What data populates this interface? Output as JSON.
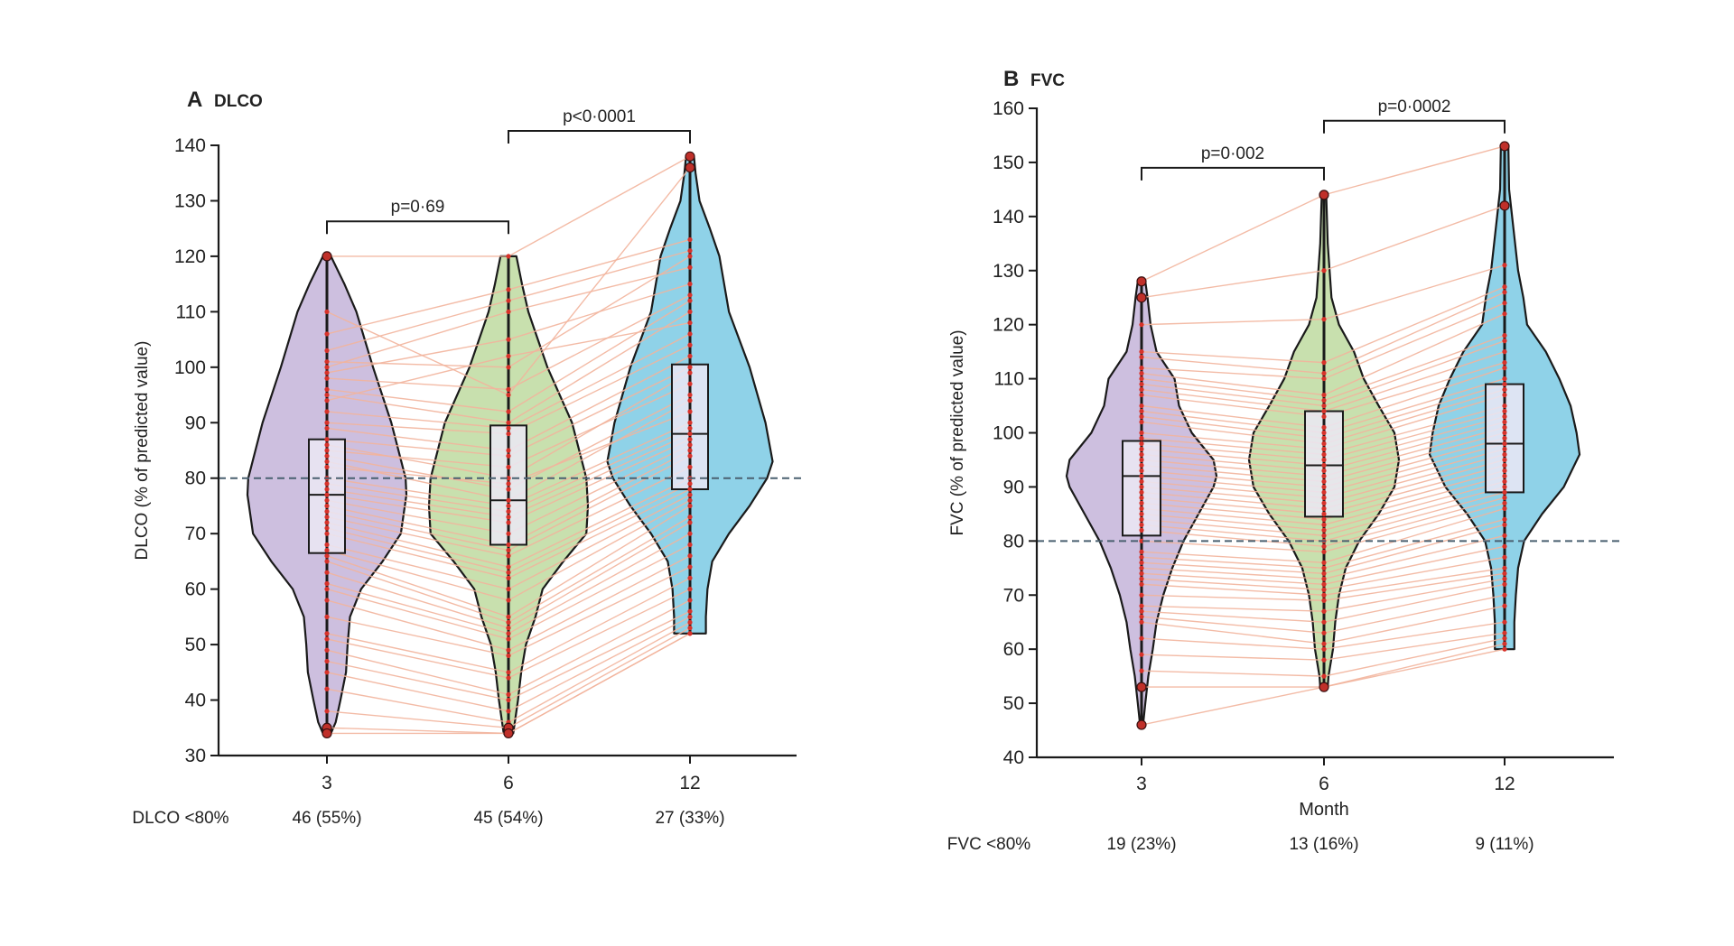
{
  "chart_data": [
    {
      "type": "violin",
      "panel_letter": "A",
      "title": "DLCO",
      "xlabel": "",
      "ylabel": "DLCO (% of predicted value)",
      "ylim": [
        30,
        140
      ],
      "yticks": [
        30,
        40,
        50,
        60,
        70,
        80,
        90,
        100,
        110,
        120,
        130,
        140
      ],
      "categories": [
        "3",
        "6",
        "12"
      ],
      "colors": [
        "#cdbfdf",
        "#c8e0ae",
        "#8fd2e8"
      ],
      "reference_line": 80,
      "comparisons": [
        {
          "from": 0,
          "to": 1,
          "label": "p=0·69"
        },
        {
          "from": 1,
          "to": 2,
          "label": "p<0·0001"
        }
      ],
      "below_threshold": {
        "label": "DLCO <80%",
        "values": [
          "46 (55%)",
          "45 (54%)",
          "27 (33%)"
        ]
      },
      "boxes": [
        {
          "min": 34,
          "q1": 66.5,
          "median": 77,
          "q3": 87,
          "max": 120
        },
        {
          "min": 34,
          "q1": 68,
          "median": 76,
          "q3": 89.5,
          "max": 120
        },
        {
          "min": 52,
          "q1": 78,
          "median": 88,
          "q3": 100.5,
          "max": 138
        }
      ],
      "density": [
        [
          [
            34,
            0.05
          ],
          [
            36,
            0.11
          ],
          [
            40,
            0.17
          ],
          [
            45,
            0.24
          ],
          [
            50,
            0.26
          ],
          [
            55,
            0.29
          ],
          [
            60,
            0.43
          ],
          [
            65,
            0.7
          ],
          [
            70,
            0.93
          ],
          [
            77,
            1.0
          ],
          [
            80,
            0.99
          ],
          [
            90,
            0.81
          ],
          [
            100,
            0.58
          ],
          [
            110,
            0.37
          ],
          [
            115,
            0.22
          ],
          [
            120,
            0.05
          ]
        ],
        [
          [
            34,
            0.06
          ],
          [
            40,
            0.12
          ],
          [
            45,
            0.16
          ],
          [
            50,
            0.22
          ],
          [
            55,
            0.34
          ],
          [
            60,
            0.43
          ],
          [
            65,
            0.69
          ],
          [
            70,
            0.98
          ],
          [
            75,
            1.0
          ],
          [
            80,
            0.98
          ],
          [
            90,
            0.8
          ],
          [
            100,
            0.49
          ],
          [
            110,
            0.25
          ],
          [
            115,
            0.17
          ],
          [
            120,
            0.1
          ]
        ],
        [
          [
            52,
            0.2
          ],
          [
            55,
            0.2
          ],
          [
            60,
            0.22
          ],
          [
            65,
            0.28
          ],
          [
            70,
            0.49
          ],
          [
            75,
            0.75
          ],
          [
            80,
            0.97
          ],
          [
            83,
            1.04
          ],
          [
            90,
            0.95
          ],
          [
            100,
            0.75
          ],
          [
            110,
            0.49
          ],
          [
            120,
            0.37
          ],
          [
            125,
            0.25
          ],
          [
            130,
            0.12
          ],
          [
            135,
            0.07
          ],
          [
            138,
            0.05
          ]
        ]
      ],
      "outliers": [
        [
          120,
          35,
          34
        ],
        [
          35,
          34
        ],
        [
          138,
          136
        ]
      ],
      "patients": [
        [
          120,
          120,
          138
        ],
        [
          110,
          95,
          136
        ],
        [
          106,
          114,
          123
        ],
        [
          103,
          112,
          121
        ],
        [
          101,
          100,
          120
        ],
        [
          100,
          110,
          118
        ],
        [
          99,
          105,
          115
        ],
        [
          98,
          96,
          113
        ],
        [
          96,
          92,
          112
        ],
        [
          95,
          90,
          110
        ],
        [
          94,
          102,
          108
        ],
        [
          92,
          89,
          106
        ],
        [
          90,
          88,
          104
        ],
        [
          89,
          85,
          102
        ],
        [
          87,
          84,
          100
        ],
        [
          86,
          80,
          99
        ],
        [
          85,
          82,
          97
        ],
        [
          84,
          78,
          95
        ],
        [
          83,
          76,
          94
        ],
        [
          82,
          79,
          92
        ],
        [
          80,
          75,
          90
        ],
        [
          79,
          74,
          89
        ],
        [
          78,
          73,
          88
        ],
        [
          77,
          72,
          87
        ],
        [
          76,
          70,
          86
        ],
        [
          75,
          68,
          85
        ],
        [
          74,
          67,
          84
        ],
        [
          73,
          66,
          82
        ],
        [
          72,
          64,
          80
        ],
        [
          71,
          63,
          79
        ],
        [
          70,
          62,
          78
        ],
        [
          68,
          60,
          77
        ],
        [
          67,
          58,
          76
        ],
        [
          66,
          55,
          75
        ],
        [
          65,
          54,
          73
        ],
        [
          63,
          53,
          72
        ],
        [
          61,
          52,
          70
        ],
        [
          60,
          51,
          68
        ],
        [
          58,
          49,
          66
        ],
        [
          55,
          48,
          64
        ],
        [
          52,
          45,
          62
        ],
        [
          51,
          44,
          60
        ],
        [
          49,
          41,
          58
        ],
        [
          47,
          40,
          56
        ],
        [
          45,
          38,
          55
        ],
        [
          42,
          36,
          54
        ],
        [
          38,
          35,
          53
        ],
        [
          35,
          34,
          52
        ],
        [
          34,
          34,
          52
        ]
      ]
    },
    {
      "type": "violin",
      "panel_letter": "B",
      "title": "FVC",
      "xlabel": "Month",
      "ylabel": "FVC (% of predicted value)",
      "ylim": [
        40,
        160
      ],
      "yticks": [
        40,
        50,
        60,
        70,
        80,
        90,
        100,
        110,
        120,
        130,
        140,
        150,
        160
      ],
      "categories": [
        "3",
        "6",
        "12"
      ],
      "colors": [
        "#cdbfdf",
        "#c8e0ae",
        "#8fd2e8"
      ],
      "reference_line": 80,
      "comparisons": [
        {
          "from": 0,
          "to": 1,
          "label": "p=0·002"
        },
        {
          "from": 1,
          "to": 2,
          "label": "p=0·0002"
        }
      ],
      "below_threshold": {
        "label": "FVC <80%",
        "values": [
          "19 (23%)",
          "13 (16%)",
          "9 (11%)"
        ]
      },
      "boxes": [
        {
          "min": 46,
          "q1": 81,
          "median": 92,
          "q3": 98.5,
          "max": 128
        },
        {
          "min": 53,
          "q1": 84.5,
          "median": 94,
          "q3": 104,
          "max": 144
        },
        {
          "min": 60,
          "q1": 89,
          "median": 98,
          "q3": 109,
          "max": 153
        }
      ],
      "density": [
        [
          [
            46,
            0.02
          ],
          [
            50,
            0.05
          ],
          [
            55,
            0.09
          ],
          [
            60,
            0.15
          ],
          [
            65,
            0.2
          ],
          [
            70,
            0.29
          ],
          [
            75,
            0.41
          ],
          [
            80,
            0.56
          ],
          [
            85,
            0.76
          ],
          [
            90,
            0.96
          ],
          [
            92,
            1.0
          ],
          [
            95,
            0.96
          ],
          [
            100,
            0.67
          ],
          [
            105,
            0.5
          ],
          [
            110,
            0.44
          ],
          [
            115,
            0.2
          ],
          [
            120,
            0.12
          ],
          [
            125,
            0.08
          ],
          [
            128,
            0.05
          ]
        ],
        [
          [
            53,
            0.05
          ],
          [
            55,
            0.06
          ],
          [
            60,
            0.12
          ],
          [
            65,
            0.15
          ],
          [
            70,
            0.2
          ],
          [
            75,
            0.29
          ],
          [
            80,
            0.47
          ],
          [
            85,
            0.73
          ],
          [
            90,
            0.94
          ],
          [
            95,
            1.0
          ],
          [
            100,
            0.94
          ],
          [
            105,
            0.73
          ],
          [
            110,
            0.53
          ],
          [
            115,
            0.4
          ],
          [
            120,
            0.2
          ],
          [
            125,
            0.1
          ],
          [
            135,
            0.05
          ],
          [
            144,
            0.03
          ]
        ],
        [
          [
            60,
            0.13
          ],
          [
            65,
            0.13
          ],
          [
            70,
            0.15
          ],
          [
            75,
            0.18
          ],
          [
            80,
            0.26
          ],
          [
            85,
            0.5
          ],
          [
            90,
            0.79
          ],
          [
            96,
            1.0
          ],
          [
            100,
            0.96
          ],
          [
            105,
            0.88
          ],
          [
            110,
            0.73
          ],
          [
            115,
            0.55
          ],
          [
            120,
            0.3
          ],
          [
            125,
            0.25
          ],
          [
            130,
            0.18
          ],
          [
            140,
            0.1
          ],
          [
            145,
            0.06
          ],
          [
            153,
            0.05
          ]
        ]
      ],
      "outliers": [
        [
          128,
          125,
          53,
          46
        ],
        [
          144,
          53
        ],
        [
          153,
          142
        ]
      ],
      "patients": [
        [
          128,
          144,
          153
        ],
        [
          125,
          130,
          142
        ],
        [
          120,
          121,
          131
        ],
        [
          115,
          113,
          127
        ],
        [
          114,
          111,
          126
        ],
        [
          112,
          110,
          124
        ],
        [
          111,
          107,
          122
        ],
        [
          110,
          106,
          118
        ],
        [
          109,
          105,
          117
        ],
        [
          108,
          104,
          115
        ],
        [
          107,
          103,
          113
        ],
        [
          105,
          101,
          112
        ],
        [
          104,
          100,
          110
        ],
        [
          103,
          99,
          109
        ],
        [
          102,
          98,
          108
        ],
        [
          100,
          97,
          107
        ],
        [
          99,
          96,
          105
        ],
        [
          98,
          95,
          104
        ],
        [
          97,
          94,
          103
        ],
        [
          96,
          93,
          102
        ],
        [
          95,
          92,
          101
        ],
        [
          94,
          91,
          100
        ],
        [
          93,
          90,
          99
        ],
        [
          92,
          89,
          98
        ],
        [
          91,
          88,
          97
        ],
        [
          90,
          87,
          96
        ],
        [
          89,
          86,
          95
        ],
        [
          88,
          85,
          94
        ],
        [
          87,
          84,
          93
        ],
        [
          86,
          83,
          92
        ],
        [
          85,
          82,
          91
        ],
        [
          84,
          81,
          90
        ],
        [
          83,
          80,
          89
        ],
        [
          82,
          79,
          88
        ],
        [
          80,
          78,
          87
        ],
        [
          78,
          76,
          86
        ],
        [
          77,
          75,
          84
        ],
        [
          76,
          74,
          83
        ],
        [
          75,
          73,
          81
        ],
        [
          74,
          72,
          79
        ],
        [
          73,
          71,
          77
        ],
        [
          72,
          70,
          75
        ],
        [
          70,
          69,
          74
        ],
        [
          68,
          67,
          73
        ],
        [
          67,
          65,
          72
        ],
        [
          66,
          63,
          70
        ],
        [
          65,
          61,
          68
        ],
        [
          62,
          60,
          65
        ],
        [
          59,
          58,
          63
        ],
        [
          56,
          55,
          62
        ],
        [
          53,
          53,
          61
        ],
        [
          46,
          53,
          60
        ]
      ]
    }
  ]
}
